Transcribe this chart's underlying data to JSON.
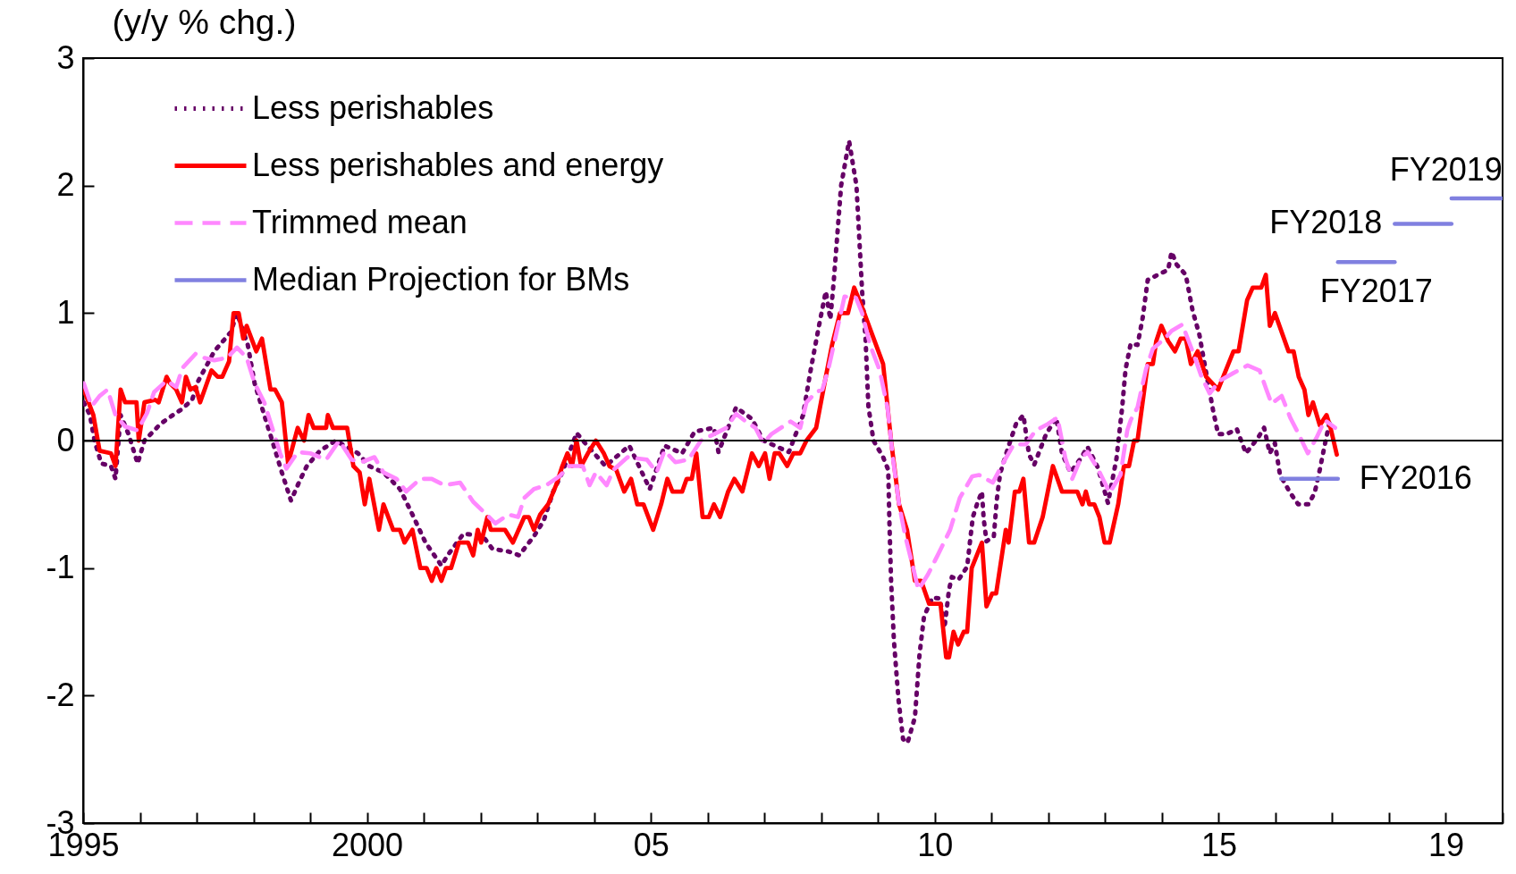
{
  "chart_data": {
    "type": "line",
    "ylabel": "(y/y % chg.)",
    "xlim": [
      1995,
      2020
    ],
    "ylim": [
      -3,
      3
    ],
    "yticks": [
      -3,
      -2,
      -1,
      0,
      1,
      2,
      3
    ],
    "xticks": [
      1995,
      {
        "value": 1996,
        "label": null
      },
      {
        "value": 1997,
        "label": null
      },
      {
        "value": 1998,
        "label": null
      },
      {
        "value": 1999,
        "label": null
      },
      2000,
      {
        "value": 2001,
        "label": null
      },
      {
        "value": 2002,
        "label": null
      },
      {
        "value": 2003,
        "label": null
      },
      {
        "value": 2004,
        "label": null
      },
      {
        "value": 2005,
        "label": "05"
      },
      {
        "value": 2006,
        "label": null
      },
      {
        "value": 2007,
        "label": null
      },
      {
        "value": 2008,
        "label": null
      },
      {
        "value": 2009,
        "label": null
      },
      {
        "value": 2010,
        "label": "10"
      },
      {
        "value": 2011,
        "label": null
      },
      {
        "value": 2012,
        "label": null
      },
      {
        "value": 2013,
        "label": null
      },
      {
        "value": 2014,
        "label": null
      },
      {
        "value": 2015,
        "label": "15"
      },
      {
        "value": 2016,
        "label": null
      },
      {
        "value": 2017,
        "label": null
      },
      {
        "value": 2018,
        "label": null
      },
      {
        "value": 2019,
        "label": "19"
      },
      {
        "value": 2020,
        "label": null
      }
    ],
    "grid": false,
    "legend": "top left",
    "marker": "none",
    "ref_lines": [
      {
        "axis": "y",
        "value": 0,
        "color": "#000000"
      }
    ],
    "annotations": [
      {
        "text": "FY2016",
        "x": 2017.1,
        "y": -0.3
      },
      {
        "text": "FY2017",
        "x": 2017.1,
        "y": 1.4
      },
      {
        "text": "FY2018",
        "x": 2018.1,
        "y": 1.7
      },
      {
        "text": "FY2019",
        "x": 2019.1,
        "y": 1.9
      }
    ],
    "series": [
      {
        "name": "Less perishables",
        "color": "#660066",
        "line_style": "dotted",
        "x": [
          1995.01,
          1995.12,
          1995.2,
          1995.32,
          1995.49,
          1995.57,
          1995.66,
          1995.8,
          1995.96,
          1996.08,
          1996.36,
          1996.58,
          1996.75,
          1996.92,
          1997.03,
          1997.31,
          1997.6,
          1997.71,
          1997.9,
          1998.02,
          1998.19,
          1998.33,
          1998.5,
          1998.66,
          1998.83,
          1998.94,
          1999.17,
          1999.45,
          1999.84,
          2000.04,
          2000.29,
          2000.58,
          2000.8,
          2001.03,
          2001.31,
          2001.42,
          2001.7,
          2002.04,
          2002.21,
          2002.49,
          2002.68,
          2002.94,
          2003.11,
          2003.28,
          2003.44,
          2003.69,
          2003.86,
          2004.2,
          2004.62,
          2004.98,
          2005.24,
          2005.55,
          2005.77,
          2006.11,
          2006.19,
          2006.5,
          2006.78,
          2006.98,
          2007.43,
          2007.68,
          2007.8,
          2007.96,
          2008.08,
          2008.16,
          2008.22,
          2008.35,
          2008.49,
          2008.62,
          2008.72,
          2008.78,
          2008.83,
          2008.92,
          2009.09,
          2009.18,
          2009.2,
          2009.23,
          2009.28,
          2009.36,
          2009.44,
          2009.52,
          2009.65,
          2009.73,
          2009.81,
          2009.96,
          2010.09,
          2010.17,
          2010.25,
          2010.3,
          2010.42,
          2010.57,
          2010.62,
          2010.67,
          2010.75,
          2010.83,
          2010.86,
          2010.91,
          2011.04,
          2011.09,
          2011.15,
          2011.28,
          2011.43,
          2011.56,
          2011.66,
          2011.75,
          2011.96,
          2012.14,
          2012.24,
          2012.39,
          2012.57,
          2012.69,
          2012.87,
          2013.05,
          2013.2,
          2013.3,
          2013.36,
          2013.45,
          2013.57,
          2013.66,
          2013.75,
          2013.93,
          2014.11,
          2014.17,
          2014.26,
          2014.42,
          2014.54,
          2014.66,
          2014.78,
          2014.9,
          2014.99,
          2015.14,
          2015.32,
          2015.48,
          2015.69,
          2015.8,
          2015.9,
          2015.99,
          2016.08,
          2016.26,
          2016.4,
          2016.58,
          2016.69,
          2016.78,
          2016.87,
          2016.96
        ],
        "values": [
          0.3,
          0.2,
          0.0,
          -0.18,
          -0.2,
          -0.3,
          0.2,
          0.05,
          -0.18,
          0.0,
          0.13,
          0.2,
          0.25,
          0.32,
          0.47,
          0.7,
          0.85,
          1.0,
          0.75,
          0.45,
          0.2,
          0.0,
          -0.25,
          -0.47,
          -0.3,
          -0.2,
          -0.08,
          0.0,
          -0.1,
          -0.2,
          -0.25,
          -0.38,
          -0.58,
          -0.8,
          -0.98,
          -0.9,
          -0.73,
          -0.75,
          -0.85,
          -0.87,
          -0.9,
          -0.75,
          -0.63,
          -0.4,
          -0.25,
          0.06,
          -0.03,
          -0.2,
          -0.04,
          -0.38,
          -0.04,
          -0.1,
          0.07,
          0.1,
          -0.09,
          0.26,
          0.17,
          0.0,
          -0.09,
          0.2,
          0.52,
          0.9,
          1.17,
          0.95,
          1.25,
          2.0,
          2.35,
          2.0,
          1.17,
          0.8,
          0.27,
          0.0,
          -0.13,
          -0.23,
          -0.63,
          -1.1,
          -1.57,
          -2.03,
          -2.34,
          -2.37,
          -2.17,
          -1.68,
          -1.38,
          -1.23,
          -1.24,
          -1.47,
          -1.17,
          -1.07,
          -1.09,
          -0.99,
          -0.79,
          -0.6,
          -0.49,
          -0.4,
          -0.61,
          -0.79,
          -0.75,
          -0.47,
          -0.26,
          -0.07,
          0.13,
          0.2,
          -0.11,
          -0.19,
          0.05,
          0.18,
          -0.1,
          -0.25,
          -0.14,
          -0.05,
          -0.21,
          -0.49,
          -0.14,
          0.26,
          0.56,
          0.76,
          0.75,
          0.96,
          1.26,
          1.3,
          1.34,
          1.48,
          1.38,
          1.3,
          1.02,
          0.83,
          0.53,
          0.24,
          0.05,
          0.05,
          0.09,
          -0.1,
          0.02,
          0.1,
          -0.1,
          -0.02,
          -0.27,
          -0.41,
          -0.5,
          -0.5,
          -0.41,
          -0.23,
          -0.03,
          0.16
        ]
      },
      {
        "name": "Less perishables and energy",
        "color": "#ff0000",
        "line_style": "solid",
        "x": [
          1995.01,
          1995.18,
          1995.29,
          1995.49,
          1995.57,
          1995.66,
          1995.74,
          1995.94,
          1995.98,
          1996.08,
          1996.27,
          1996.33,
          1996.47,
          1996.53,
          1996.64,
          1996.74,
          1996.81,
          1996.89,
          1996.98,
          1997.06,
          1997.26,
          1997.37,
          1997.45,
          1997.57,
          1997.65,
          1997.74,
          1997.82,
          1997.88,
          1998.05,
          1998.15,
          1998.3,
          1998.38,
          1998.5,
          1998.61,
          1998.78,
          1998.89,
          1998.97,
          1999.06,
          1999.28,
          1999.31,
          1999.4,
          1999.65,
          1999.76,
          1999.87,
          1999.96,
          2000.04,
          2000.21,
          2000.29,
          2000.46,
          2000.58,
          2000.66,
          2000.8,
          2000.94,
          2001.05,
          2001.14,
          2001.22,
          2001.31,
          2001.39,
          2001.48,
          2001.62,
          2001.78,
          2001.87,
          2001.95,
          2002.01,
          2002.12,
          2002.18,
          2002.32,
          2002.43,
          2002.57,
          2002.77,
          2002.85,
          2002.94,
          2003.05,
          2003.19,
          2003.33,
          2003.44,
          2003.53,
          2003.61,
          2003.69,
          2003.77,
          2003.89,
          2004.03,
          2004.17,
          2004.27,
          2004.39,
          2004.53,
          2004.65,
          2004.76,
          2004.87,
          2005.04,
          2005.18,
          2005.29,
          2005.38,
          2005.55,
          2005.63,
          2005.72,
          2005.8,
          2005.91,
          2006.02,
          2006.11,
          2006.22,
          2006.36,
          2006.47,
          2006.61,
          2006.78,
          2006.9,
          2007.01,
          2007.09,
          2007.18,
          2007.26,
          2007.4,
          2007.51,
          2007.63,
          2007.74,
          2007.91,
          2008.08,
          2008.19,
          2008.33,
          2008.47,
          2008.58,
          2008.69,
          2009.09,
          2009.23,
          2009.37,
          2009.51,
          2009.65,
          2009.76,
          2009.9,
          2010.1,
          2010.2,
          2010.25,
          2010.33,
          2010.41,
          2010.51,
          2010.57,
          2010.65,
          2010.83,
          2010.91,
          2011.01,
          2011.08,
          2011.25,
          2011.3,
          2011.41,
          2011.49,
          2011.56,
          2011.66,
          2011.75,
          2011.9,
          2012.08,
          2012.24,
          2012.51,
          2012.6,
          2012.66,
          2012.72,
          2012.81,
          2012.9,
          2012.99,
          2013.08,
          2013.23,
          2013.33,
          2013.42,
          2013.51,
          2013.57,
          2013.66,
          2013.75,
          2013.84,
          2013.9,
          2013.99,
          2014.11,
          2014.23,
          2014.33,
          2014.42,
          2014.51,
          2014.63,
          2014.78,
          2014.99,
          2015.08,
          2015.26,
          2015.35,
          2015.5,
          2015.6,
          2015.75,
          2015.83,
          2015.9,
          2015.99,
          2016.23,
          2016.32,
          2016.41,
          2016.51,
          2016.58,
          2016.66,
          2016.78,
          2016.9,
          2016.97,
          2017.08
        ],
        "values": [
          0.4,
          0.2,
          -0.08,
          -0.1,
          -0.2,
          0.4,
          0.3,
          0.3,
          0.0,
          0.3,
          0.32,
          0.3,
          0.5,
          0.45,
          0.4,
          0.3,
          0.5,
          0.4,
          0.42,
          0.3,
          0.55,
          0.5,
          0.5,
          0.62,
          1.0,
          1.0,
          0.8,
          0.9,
          0.7,
          0.8,
          0.4,
          0.4,
          0.3,
          -0.18,
          0.1,
          0.0,
          0.2,
          0.1,
          0.1,
          0.2,
          0.1,
          0.1,
          -0.2,
          -0.25,
          -0.5,
          -0.3,
          -0.7,
          -0.5,
          -0.7,
          -0.7,
          -0.8,
          -0.7,
          -1.0,
          -1.0,
          -1.1,
          -1.0,
          -1.1,
          -1.0,
          -1.0,
          -0.8,
          -0.8,
          -0.9,
          -0.7,
          -0.8,
          -0.6,
          -0.7,
          -0.7,
          -0.7,
          -0.8,
          -0.6,
          -0.6,
          -0.7,
          -0.58,
          -0.5,
          -0.35,
          -0.2,
          -0.1,
          -0.2,
          0.0,
          -0.2,
          -0.1,
          0.0,
          -0.1,
          -0.2,
          -0.23,
          -0.4,
          -0.3,
          -0.5,
          -0.5,
          -0.7,
          -0.5,
          -0.3,
          -0.4,
          -0.4,
          -0.3,
          -0.3,
          -0.1,
          -0.6,
          -0.6,
          -0.5,
          -0.6,
          -0.4,
          -0.3,
          -0.4,
          -0.1,
          -0.2,
          -0.1,
          -0.3,
          -0.1,
          -0.1,
          -0.2,
          -0.1,
          -0.1,
          0.0,
          0.1,
          0.5,
          0.75,
          1.0,
          1.0,
          1.2,
          1.08,
          0.6,
          0.0,
          -0.5,
          -0.7,
          -1.1,
          -1.1,
          -1.28,
          -1.28,
          -1.7,
          -1.7,
          -1.5,
          -1.6,
          -1.5,
          -1.5,
          -1.0,
          -0.8,
          -1.3,
          -1.2,
          -1.2,
          -0.7,
          -0.8,
          -0.4,
          -0.4,
          -0.3,
          -0.8,
          -0.8,
          -0.6,
          -0.2,
          -0.4,
          -0.4,
          -0.5,
          -0.4,
          -0.5,
          -0.5,
          -0.6,
          -0.8,
          -0.8,
          -0.5,
          -0.2,
          -0.2,
          0.0,
          0.0,
          0.3,
          0.6,
          0.6,
          0.78,
          0.9,
          0.78,
          0.7,
          0.8,
          0.8,
          0.6,
          0.7,
          0.5,
          0.4,
          0.5,
          0.7,
          0.7,
          1.1,
          1.2,
          1.2,
          1.3,
          0.9,
          1.0,
          0.7,
          0.7,
          0.5,
          0.4,
          0.2,
          0.3,
          0.12,
          0.2,
          0.1,
          -0.11
        ]
      },
      {
        "name": "Trimmed mean",
        "color": "#ff88ff",
        "line_style": "dashed",
        "x": [
          1995.01,
          1995.15,
          1995.29,
          1995.43,
          1995.57,
          1995.74,
          1995.96,
          1996.13,
          1996.25,
          1996.47,
          1996.64,
          1996.75,
          1996.98,
          1997.12,
          1997.31,
          1997.54,
          1997.71,
          1997.88,
          1998.02,
          1998.19,
          1998.33,
          1998.47,
          1998.58,
          1998.78,
          1999.0,
          1999.28,
          1999.51,
          1999.73,
          1999.9,
          2000.13,
          2000.29,
          2000.52,
          2000.69,
          2000.94,
          2001.14,
          2001.36,
          2001.64,
          2001.87,
          2002.15,
          2002.26,
          2002.49,
          2002.66,
          2002.77,
          2002.94,
          2003.16,
          2003.39,
          2003.56,
          2003.8,
          2003.92,
          2004.03,
          2004.22,
          2004.34,
          2004.59,
          2004.93,
          2005.1,
          2005.24,
          2005.43,
          2005.66,
          2005.88,
          2006.11,
          2006.33,
          2006.5,
          2006.67,
          2006.84,
          2006.98,
          2007.12,
          2007.46,
          2007.63,
          2007.74,
          2007.91,
          2008.02,
          2008.13,
          2008.22,
          2008.33,
          2008.41,
          2008.61,
          2008.72,
          2008.86,
          2009.03,
          2009.17,
          2009.26,
          2009.37,
          2009.48,
          2009.62,
          2009.71,
          2009.88,
          2010.05,
          2010.27,
          2010.44,
          2010.66,
          2010.78,
          2011.02,
          2011.21,
          2011.39,
          2011.6,
          2011.78,
          2011.99,
          2012.16,
          2012.3,
          2012.42,
          2012.57,
          2012.69,
          2012.87,
          2013.08,
          2013.27,
          2013.39,
          2013.45,
          2013.57,
          2013.72,
          2013.84,
          2014.05,
          2014.17,
          2014.36,
          2014.54,
          2014.69,
          2014.84,
          2015.02,
          2015.26,
          2015.51,
          2015.72,
          2015.84,
          2015.93,
          2016.11,
          2016.26,
          2016.41,
          2016.57,
          2016.72,
          2016.87,
          2017.05
        ],
        "values": [
          0.45,
          0.27,
          0.35,
          0.4,
          0.2,
          0.11,
          0.08,
          0.22,
          0.38,
          0.47,
          0.42,
          0.57,
          0.68,
          0.65,
          0.63,
          0.65,
          0.73,
          0.65,
          0.45,
          0.3,
          0.1,
          -0.1,
          -0.22,
          -0.09,
          -0.1,
          -0.15,
          0.0,
          -0.15,
          -0.17,
          -0.13,
          -0.25,
          -0.3,
          -0.4,
          -0.3,
          -0.3,
          -0.35,
          -0.33,
          -0.48,
          -0.6,
          -0.65,
          -0.58,
          -0.6,
          -0.45,
          -0.38,
          -0.35,
          -0.28,
          -0.2,
          -0.2,
          -0.35,
          -0.25,
          -0.35,
          -0.23,
          -0.13,
          -0.15,
          -0.25,
          -0.08,
          -0.17,
          -0.15,
          0.0,
          0.05,
          0.1,
          0.21,
          0.15,
          0.1,
          -0.02,
          0.05,
          0.15,
          0.1,
          0.3,
          0.38,
          0.4,
          0.57,
          0.75,
          0.97,
          1.13,
          1.12,
          1.0,
          0.75,
          0.55,
          0.25,
          -0.13,
          -0.5,
          -0.75,
          -1.0,
          -1.17,
          -1.05,
          -0.9,
          -0.7,
          -0.45,
          -0.28,
          -0.27,
          -0.33,
          -0.17,
          -0.03,
          -0.03,
          0.08,
          0.13,
          0.18,
          -0.14,
          -0.3,
          -0.14,
          -0.09,
          -0.22,
          -0.41,
          -0.27,
          0.08,
          0.16,
          0.26,
          0.56,
          0.72,
          0.8,
          0.86,
          0.91,
          0.7,
          0.51,
          0.37,
          0.47,
          0.53,
          0.59,
          0.55,
          0.4,
          0.29,
          0.35,
          0.18,
          0.05,
          -0.1,
          0.02,
          0.16,
          0.1
        ]
      },
      {
        "name": "Median Projection for BMs",
        "color": "#8080e0",
        "line_style": "solid",
        "x": [
          2016.1,
          2017.1,
          null,
          2017.1,
          2018.1,
          null,
          2018.1,
          2019.1,
          null,
          2019.1,
          2020.0
        ],
        "values": [
          -0.3,
          -0.3,
          null,
          1.4,
          1.4,
          null,
          1.7,
          1.7,
          null,
          1.9,
          1.9
        ]
      }
    ]
  }
}
